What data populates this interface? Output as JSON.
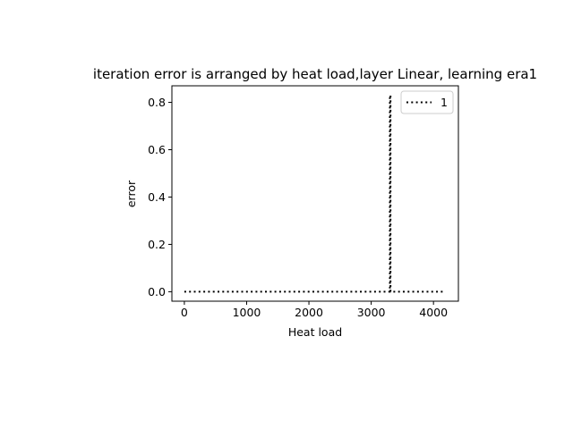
{
  "chart_data": {
    "type": "line",
    "title": "iteration error is arranged by heat load,layer Linear, learning era1",
    "xlabel": "Heat load",
    "ylabel": "error",
    "xlim": [
      -200,
      4400
    ],
    "ylim": [
      -0.04,
      0.87
    ],
    "xticks": [
      0,
      1000,
      2000,
      3000,
      4000
    ],
    "yticks": [
      0.0,
      0.2,
      0.4,
      0.6,
      0.8
    ],
    "xtick_labels": [
      "0",
      "1000",
      "2000",
      "3000",
      "4000"
    ],
    "ytick_labels": [
      "0.0",
      "0.2",
      "0.4",
      "0.6",
      "0.8"
    ],
    "grid": false,
    "legend_position": "top-right",
    "series": [
      {
        "name": "1",
        "color": "#000000",
        "line_style": "dotted",
        "x": [
          0,
          3300,
          3300,
          3310,
          3310,
          4160
        ],
        "y": [
          0.0,
          0.0,
          0.83,
          0.83,
          0.0,
          0.0
        ]
      }
    ]
  }
}
